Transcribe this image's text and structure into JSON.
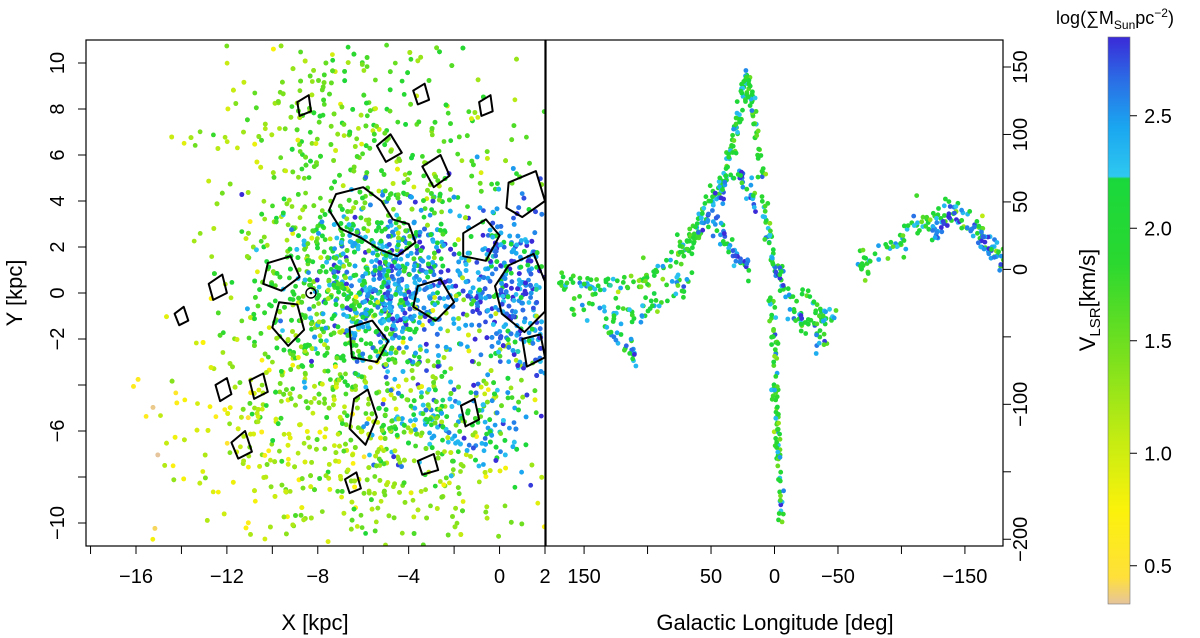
{
  "chart_data": [
    {
      "type": "scatter",
      "panel": "left",
      "xlabel": "X [kpc]",
      "ylabel": "Y [kpc]",
      "xlim": [
        -18.2,
        2
      ],
      "ylim": [
        -11.0,
        11.0
      ],
      "x_ticks": [
        -16,
        -12,
        -8,
        -4,
        0,
        2
      ],
      "x_tick_labels": [
        "−16",
        "−12",
        "−8",
        "−4",
        "0",
        "2"
      ],
      "y_ticks": [
        -10,
        -6,
        -2,
        0,
        2,
        4,
        6,
        8,
        10
      ],
      "y_tick_labels": [
        "−10",
        "−6",
        "−2",
        "0",
        "2",
        "4",
        "6",
        "8",
        "10"
      ],
      "grid": false,
      "sun_marker": [
        -8.3,
        0
      ],
      "density_clusters": [
        {
          "x": -4.5,
          "y": 0.2,
          "sx": 1.8,
          "sy": 1.6,
          "level": 2.45,
          "weight": 0.22
        },
        {
          "x": 0.5,
          "y": 0.2,
          "sx": 1.0,
          "sy": 2.0,
          "level": 2.55,
          "weight": 0.12
        },
        {
          "x": -2.0,
          "y": -5.8,
          "sx": 1.5,
          "sy": 1.0,
          "level": 2.3,
          "weight": 0.06
        },
        {
          "x": -7.5,
          "y": -0.5,
          "sx": 2.2,
          "sy": 2.5,
          "level": 2.0,
          "weight": 0.15
        },
        {
          "x": -6.0,
          "y": 6.0,
          "sx": 3.5,
          "sy": 3.0,
          "level": 1.6,
          "weight": 0.2
        },
        {
          "x": -6.0,
          "y": -6.0,
          "sx": 4.0,
          "sy": 3.0,
          "level": 1.3,
          "weight": 0.25
        }
      ],
      "contours": [
        [
          [
            -7.2,
            4.3
          ],
          [
            -6.0,
            4.6
          ],
          [
            -5.2,
            4.0
          ],
          [
            -4.7,
            3.2
          ],
          [
            -4.0,
            3.0
          ],
          [
            -3.7,
            2.2
          ],
          [
            -4.5,
            1.6
          ],
          [
            -5.3,
            1.9
          ],
          [
            -6.1,
            2.4
          ],
          [
            -7.0,
            2.8
          ],
          [
            -7.5,
            3.6
          ]
        ],
        [
          [
            -10.2,
            1.3
          ],
          [
            -9.2,
            1.6
          ],
          [
            -8.8,
            0.7
          ],
          [
            -9.6,
            0.1
          ],
          [
            -10.4,
            0.4
          ]
        ],
        [
          [
            -9.7,
            -0.4
          ],
          [
            -8.9,
            -0.5
          ],
          [
            -8.6,
            -1.6
          ],
          [
            -9.3,
            -2.3
          ],
          [
            -10.0,
            -1.5
          ]
        ],
        [
          [
            -6.6,
            -1.5
          ],
          [
            -5.6,
            -1.2
          ],
          [
            -4.9,
            -2.1
          ],
          [
            -5.4,
            -3.0
          ],
          [
            -6.5,
            -2.8
          ]
        ],
        [
          [
            -3.6,
            0.3
          ],
          [
            -2.6,
            0.6
          ],
          [
            -2.0,
            -0.4
          ],
          [
            -2.8,
            -1.2
          ],
          [
            -3.8,
            -0.6
          ]
        ],
        [
          [
            -1.6,
            2.6
          ],
          [
            -0.6,
            3.2
          ],
          [
            0.0,
            2.5
          ],
          [
            -0.6,
            1.4
          ],
          [
            -1.6,
            1.6
          ]
        ],
        [
          [
            0.4,
            4.8
          ],
          [
            1.6,
            5.3
          ],
          [
            2.0,
            4.0
          ],
          [
            1.0,
            3.3
          ],
          [
            0.3,
            3.7
          ]
        ],
        [
          [
            0.4,
            1.2
          ],
          [
            1.5,
            1.7
          ],
          [
            2.0,
            0.5
          ],
          [
            2.0,
            -0.8
          ],
          [
            1.1,
            -1.7
          ],
          [
            0.1,
            -0.9
          ],
          [
            -0.2,
            0.3
          ]
        ],
        [
          [
            1.0,
            -2.0
          ],
          [
            1.8,
            -1.8
          ],
          [
            2.0,
            -2.8
          ],
          [
            1.2,
            -3.2
          ]
        ],
        [
          [
            -3.4,
            5.5
          ],
          [
            -2.6,
            6.0
          ],
          [
            -2.2,
            5.1
          ],
          [
            -2.9,
            4.6
          ]
        ],
        [
          [
            -5.4,
            6.4
          ],
          [
            -4.8,
            6.9
          ],
          [
            -4.3,
            6.1
          ],
          [
            -5.0,
            5.7
          ]
        ],
        [
          [
            -11.0,
            -3.8
          ],
          [
            -10.4,
            -3.5
          ],
          [
            -10.2,
            -4.3
          ],
          [
            -10.8,
            -4.6
          ]
        ],
        [
          [
            -12.5,
            -4.0
          ],
          [
            -12.0,
            -3.7
          ],
          [
            -11.8,
            -4.4
          ],
          [
            -12.3,
            -4.7
          ]
        ],
        [
          [
            -6.4,
            -4.6
          ],
          [
            -5.8,
            -4.2
          ],
          [
            -5.4,
            -5.4
          ],
          [
            -5.9,
            -6.6
          ],
          [
            -6.6,
            -5.9
          ]
        ],
        [
          [
            -1.7,
            -4.9
          ],
          [
            -1.1,
            -4.6
          ],
          [
            -0.9,
            -5.5
          ],
          [
            -1.5,
            -5.8
          ]
        ],
        [
          [
            -11.8,
            -6.5
          ],
          [
            -11.2,
            -6.0
          ],
          [
            -10.9,
            -6.9
          ],
          [
            -11.5,
            -7.2
          ]
        ],
        [
          [
            -3.6,
            -7.3
          ],
          [
            -2.9,
            -7.0
          ],
          [
            -2.7,
            -7.7
          ],
          [
            -3.4,
            -7.9
          ]
        ],
        [
          [
            -12.8,
            0.4
          ],
          [
            -12.2,
            0.8
          ],
          [
            -12.0,
            0.0
          ],
          [
            -12.6,
            -0.3
          ]
        ],
        [
          [
            -8.9,
            8.3
          ],
          [
            -8.4,
            8.6
          ],
          [
            -8.3,
            7.9
          ],
          [
            -8.8,
            7.7
          ]
        ],
        [
          [
            -3.8,
            8.8
          ],
          [
            -3.3,
            9.1
          ],
          [
            -3.1,
            8.4
          ],
          [
            -3.6,
            8.2
          ]
        ],
        [
          [
            -6.8,
            -8.1
          ],
          [
            -6.3,
            -7.8
          ],
          [
            -6.1,
            -8.5
          ],
          [
            -6.6,
            -8.7
          ]
        ],
        [
          [
            -0.9,
            8.3
          ],
          [
            -0.4,
            8.6
          ],
          [
            -0.3,
            7.9
          ],
          [
            -0.8,
            7.7
          ]
        ],
        [
          [
            -14.3,
            -0.9
          ],
          [
            -13.9,
            -0.6
          ],
          [
            -13.7,
            -1.2
          ],
          [
            -14.1,
            -1.4
          ]
        ]
      ]
    },
    {
      "type": "scatter",
      "panel": "right",
      "xlabel": "Galactic Longitude [deg]",
      "ylabel": "V",
      "ylabel_sub": "LSR",
      "ylabel_unit": "[km/s]",
      "xlim": [
        180,
        -180
      ],
      "ylim": [
        -205,
        170
      ],
      "x_ticks": [
        150,
        50,
        0,
        -50,
        -150
      ],
      "x_tick_labels": [
        "150",
        "50",
        "0",
        "−50",
        "−150"
      ],
      "x_minor_ticks": [
        100,
        -100
      ],
      "y_ticks": [
        -200,
        -100,
        0,
        50,
        100,
        150
      ],
      "y_tick_labels": [
        "−200",
        "−100",
        "0",
        "50",
        "100",
        "150"
      ],
      "y_minor_ticks": [
        -150,
        -50
      ],
      "grid": false,
      "tracks": [
        {
          "l": [
            170,
            140,
            110,
            85,
            70,
            60
          ],
          "v": [
            -10,
            -13,
            -8,
            2,
            15,
            28
          ],
          "spread": 4,
          "level": 1.9,
          "n": 110
        },
        {
          "l": [
            160,
            130,
            100,
            80,
            65
          ],
          "v": [
            -25,
            -32,
            -30,
            -18,
            -5
          ],
          "spread": 5,
          "level": 2.1,
          "n": 60
        },
        {
          "l": [
            140,
            125,
            110
          ],
          "v": [
            -30,
            -50,
            -65
          ],
          "spread": 4,
          "level": 2.3,
          "n": 30
        },
        {
          "l": [
            62,
            45,
            35,
            28,
            22,
            18,
            12,
            5,
            0
          ],
          "v": [
            35,
            55,
            85,
            115,
            145,
            125,
            80,
            30,
            0
          ],
          "spread": 5,
          "level": 2.0,
          "n": 160
        },
        {
          "l": [
            60,
            50,
            40,
            30,
            22,
            15
          ],
          "v": [
            30,
            48,
            62,
            75,
            60,
            50
          ],
          "spread": 5,
          "level": 2.4,
          "n": 60
        },
        {
          "l": [
            48,
            38,
            28,
            20
          ],
          "v": [
            35,
            20,
            8,
            0
          ],
          "spread": 4,
          "level": 2.5,
          "n": 40
        },
        {
          "l": [
            3,
            0,
            -2,
            -4,
            -6
          ],
          "v": [
            -20,
            -70,
            -110,
            -150,
            -195
          ],
          "spread": 4,
          "level": 2.0,
          "n": 90
        },
        {
          "l": [
            0,
            -5,
            -10,
            -16,
            -22,
            -30,
            -40
          ],
          "v": [
            0,
            -5,
            -15,
            -30,
            -38,
            -45,
            -55
          ],
          "spread": 5,
          "level": 2.2,
          "n": 60
        },
        {
          "l": [
            -22,
            -30,
            -40,
            -50
          ],
          "v": [
            -10,
            -25,
            -38,
            -35
          ],
          "spread": 4,
          "level": 2.1,
          "n": 30
        },
        {
          "l": [
            -65,
            -80,
            -95,
            -110,
            -125,
            -140,
            -155,
            -170,
            -185
          ],
          "v": [
            0,
            10,
            20,
            30,
            40,
            45,
            35,
            20,
            5
          ],
          "spread": 5,
          "level": 2.0,
          "n": 110
        },
        {
          "l": [
            -125,
            -140,
            -155,
            -170,
            -185
          ],
          "v": [
            25,
            40,
            30,
            15,
            0
          ],
          "spread": 4,
          "level": 2.6,
          "n": 60
        }
      ]
    },
    {
      "type": "colorbar",
      "title": "log(∑M",
      "title_sub": "Sun",
      "title_unit": "pc",
      "title_sup": "−2",
      "title_end": ")",
      "range": [
        0.33,
        2.85
      ],
      "ticks": [
        0.5,
        1.0,
        1.5,
        2.0,
        2.5
      ],
      "tick_labels": [
        "0.5",
        "1.0",
        "1.5",
        "2.0",
        "2.5"
      ],
      "colorstops": [
        {
          "v": 0.33,
          "c": "#e6c49c"
        },
        {
          "v": 0.45,
          "c": "#ffe03a"
        },
        {
          "v": 0.75,
          "c": "#fbf20a"
        },
        {
          "v": 1.05,
          "c": "#c6ec12"
        },
        {
          "v": 1.45,
          "c": "#76e01e"
        },
        {
          "v": 1.85,
          "c": "#2ad830"
        },
        {
          "v": 2.22,
          "c": "#1ad83c"
        },
        {
          "v": 2.23,
          "c": "#2ec8f0"
        },
        {
          "v": 2.45,
          "c": "#1aa6f0"
        },
        {
          "v": 2.65,
          "c": "#2a70e6"
        },
        {
          "v": 2.85,
          "c": "#3a2ad8"
        }
      ]
    }
  ]
}
